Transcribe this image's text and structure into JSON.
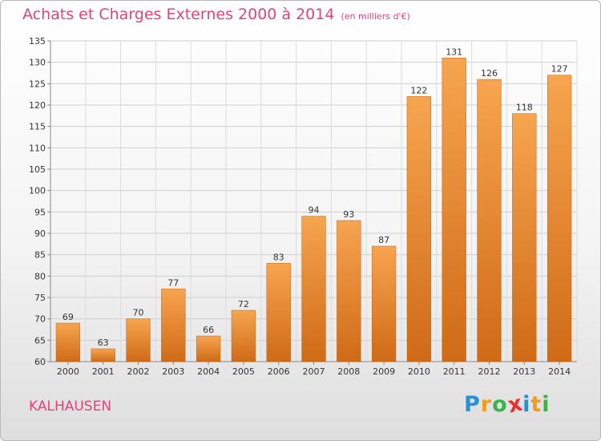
{
  "header": {
    "title": "Achats et Charges Externes 2000 à 2014",
    "subtitle": "(en milliers d'€)"
  },
  "footer": {
    "commune": "KALHAUSEN",
    "logo_letters": [
      {
        "char": "P",
        "color": "#2a8fd6"
      },
      {
        "char": "r",
        "color": "#f39a1f"
      },
      {
        "char": "o",
        "color": "#3bb34a"
      },
      {
        "char": "x",
        "color": "#e8312e"
      },
      {
        "char": "i",
        "color": "#2a8fd6"
      },
      {
        "char": "t",
        "color": "#f39a1f"
      },
      {
        "char": "i",
        "color": "#3bb34a"
      }
    ]
  },
  "chart_data": {
    "type": "bar",
    "categories": [
      "2000",
      "2001",
      "2002",
      "2003",
      "2004",
      "2005",
      "2006",
      "2007",
      "2008",
      "2009",
      "2010",
      "2011",
      "2012",
      "2013",
      "2014"
    ],
    "values": [
      69,
      63,
      70,
      77,
      66,
      72,
      83,
      94,
      93,
      87,
      122,
      131,
      126,
      118,
      127
    ],
    "yticks": [
      60,
      65,
      70,
      75,
      80,
      85,
      90,
      95,
      100,
      105,
      110,
      115,
      120,
      125,
      130,
      135
    ],
    "ylim": [
      60,
      135
    ],
    "grid": true,
    "data_labels": true,
    "bar_color_top": "#f7a550",
    "bar_color_bottom": "#d06a16",
    "title": "Achats et Charges Externes 2000 à 2014",
    "subtitle": "(en milliers d'€)"
  }
}
